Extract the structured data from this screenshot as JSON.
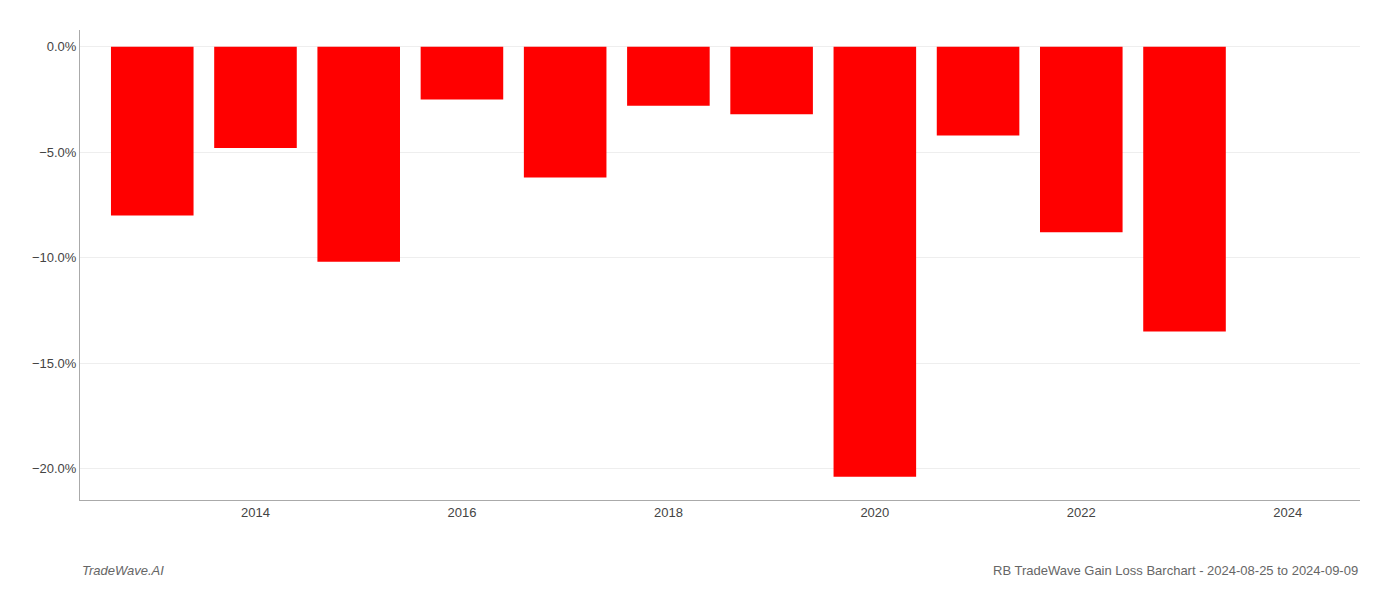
{
  "chart_data": {
    "type": "bar",
    "x": [
      2013,
      2014,
      2015,
      2016,
      2017,
      2018,
      2019,
      2020,
      2021,
      2022,
      2023
    ],
    "values": [
      -8.0,
      -4.8,
      -10.2,
      -2.5,
      -6.2,
      -2.8,
      -3.2,
      -20.4,
      -4.2,
      -8.8,
      -13.5
    ],
    "color": "#ff0000",
    "xlim": [
      2012.3,
      2024.7
    ],
    "xticks": [
      2014,
      2016,
      2018,
      2020,
      2022,
      2024
    ],
    "ylim": [
      -21.5,
      0.8
    ],
    "yticks": [
      {
        "value": 0.0,
        "label": "0.0%"
      },
      {
        "value": -5.0,
        "label": "−5.0%"
      },
      {
        "value": -10.0,
        "label": "−10.0%"
      },
      {
        "value": -15.0,
        "label": "−15.0%"
      },
      {
        "value": -20.0,
        "label": "−20.0%"
      }
    ],
    "grid": true,
    "annotations": [
      "TradeWave.AI",
      "RB TradeWave Gain Loss Barchart - 2024-08-25 to 2024-09-09"
    ]
  }
}
